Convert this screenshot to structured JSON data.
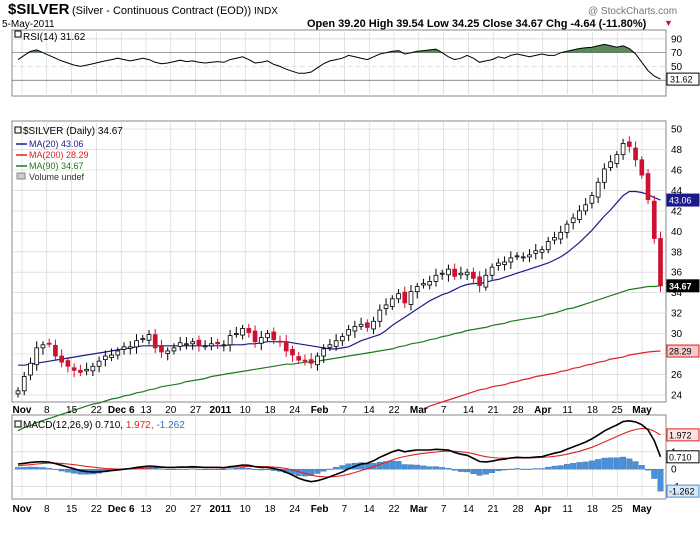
{
  "header": {
    "symbol": "$SILVER",
    "description": "(Silver - Continuous Contract (EOD))",
    "exchange": "INDX",
    "date": "5-May-2011",
    "ohlc_text": "Open 39.20  High 39.54  Low 34.25  Close 34.67  Chg -4.64 (-11.80%)",
    "chg_arrow": "▼",
    "watermark": "@ StockCharts.com"
  },
  "colors": {
    "up": "#ffffff",
    "down": "#cc1133",
    "candle_outline": "#000000",
    "ma20": "#1a1a8c",
    "ma200": "#e02020",
    "ma90": "#1e7a1e",
    "rsi_fill": "#5a8a5a",
    "hist": "#4a90d9",
    "macd_line": "#000000",
    "signal_line": "#e02020",
    "grid": "#d0d0d0",
    "axis_badge": "#000000"
  },
  "x_axis_labels": [
    "Nov",
    "8",
    "15",
    "22",
    "Dec 6",
    "13",
    "20",
    "27",
    "2011",
    "10",
    "18",
    "24",
    "Feb",
    "7",
    "14",
    "22",
    "Mar",
    "7",
    "14",
    "21",
    "28",
    "Apr",
    "11",
    "18",
    "25",
    "May"
  ],
  "rsi": {
    "label": "RSI(14) 31.62",
    "yticks": [
      "90",
      "70",
      "50",
      "30"
    ],
    "current": "31.62"
  },
  "price": {
    "legend_title": "$SILVER (Daily) 34.67",
    "legend": [
      "MA(20) 43.06",
      "MA(200) 28.29",
      "MA(90) 34.67",
      "Volume undef"
    ],
    "yticks": [
      "50",
      "48",
      "46",
      "44",
      "42",
      "40",
      "38",
      "36",
      "34",
      "32",
      "30",
      "28",
      "26",
      "24"
    ],
    "badges": [
      "43.06",
      "34.67",
      "28.29"
    ]
  },
  "macd": {
    "label_prefix": "MACD(12,26,9)",
    "label_macd": "0.710,",
    "label_signal": "1.972,",
    "label_hist": "-1.262",
    "yticks": [
      "2",
      "1",
      "0",
      "-1"
    ],
    "badges": [
      "1.972",
      "0.710",
      "-1.262"
    ]
  },
  "chart_data": {
    "type": "candlestick",
    "title": "$SILVER (Silver - Continuous Contract (EOD))",
    "period": "Nov 2010 – 5 May 2011",
    "ohlc_last": {
      "open": 39.2,
      "high": 39.54,
      "low": 34.25,
      "close": 34.67,
      "change": -4.64,
      "change_pct": -11.8
    },
    "price_ylim": [
      23.5,
      50.5
    ],
    "close_series": [
      24.4,
      25.8,
      27.1,
      28.6,
      28.9,
      29.0,
      27.8,
      27.2,
      26.8,
      26.4,
      26.2,
      26.5,
      26.8,
      27.3,
      27.8,
      27.9,
      28.3,
      28.7,
      28.7,
      29.3,
      29.5,
      29.9,
      28.6,
      28.2,
      28.3,
      28.6,
      29.1,
      29.0,
      29.2,
      28.9,
      28.8,
      29.0,
      29.0,
      28.9,
      29.8,
      30.0,
      30.5,
      30.1,
      29.2,
      29.6,
      30.0,
      29.4,
      29.2,
      28.3,
      27.9,
      27.4,
      27.3,
      27.1,
      27.8,
      28.5,
      28.9,
      29.3,
      29.7,
      30.4,
      30.7,
      30.9,
      30.6,
      31.2,
      32.3,
      32.8,
      33.4,
      33.9,
      33.0,
      34.1,
      34.6,
      34.9,
      35.1,
      35.7,
      35.9,
      36.3,
      35.6,
      35.9,
      36.0,
      35.4,
      34.7,
      35.7,
      36.5,
      36.9,
      37.0,
      37.4,
      37.6,
      37.5,
      37.7,
      38.1,
      38.2,
      39.0,
      39.4,
      39.9,
      40.7,
      41.3,
      42.0,
      42.6,
      43.5,
      44.8,
      46.1,
      46.8,
      47.5,
      48.6,
      48.3,
      47.0,
      45.5,
      43.1,
      39.3,
      34.67
    ],
    "series": [
      {
        "name": "MA(20)",
        "last": 43.06,
        "values": [
          26.9,
          26.9,
          27.0,
          27.1,
          27.2,
          27.3,
          27.4,
          27.5,
          27.6,
          27.7,
          27.8,
          27.9,
          28.0,
          28.1,
          28.2,
          28.3,
          28.4,
          28.5,
          28.6,
          28.7,
          28.8,
          28.8,
          28.8,
          28.8,
          28.8,
          28.8,
          28.8,
          28.8,
          28.8,
          28.8,
          28.8,
          28.8,
          28.8,
          28.8,
          28.9,
          28.9,
          28.9,
          29.0,
          29.0,
          29.1,
          29.2,
          29.2,
          29.2,
          29.2,
          29.1,
          29.0,
          28.9,
          28.8,
          28.7,
          28.6,
          28.5,
          28.5,
          28.6,
          28.7,
          29.0,
          29.3,
          29.5,
          29.7,
          29.9,
          30.3,
          30.8,
          31.2,
          31.6,
          32.0,
          32.4,
          32.8,
          33.2,
          33.5,
          33.8,
          34.0,
          34.3,
          34.6,
          34.8,
          34.9,
          34.9,
          35.0,
          35.2,
          35.3,
          35.5,
          35.7,
          35.9,
          36.1,
          36.3,
          36.5,
          36.7,
          36.9,
          37.2,
          37.5,
          37.9,
          38.4,
          38.9,
          39.5,
          40.1,
          40.8,
          41.5,
          42.1,
          42.8,
          43.5,
          43.9,
          43.9,
          43.8,
          43.6,
          43.3,
          43.06
        ]
      },
      {
        "name": "MA(90)",
        "last": 34.67,
        "values": [
          20.5,
          20.8,
          21.0,
          21.3,
          21.5,
          21.7,
          21.9,
          22.1,
          22.3,
          22.5,
          22.7,
          22.9,
          23.1,
          23.2,
          23.4,
          23.6,
          23.7,
          23.9,
          24.0,
          24.2,
          24.3,
          24.5,
          24.6,
          24.8,
          24.9,
          25.0,
          25.1,
          25.3,
          25.4,
          25.5,
          25.6,
          25.8,
          25.9,
          26.0,
          26.1,
          26.2,
          26.3,
          26.4,
          26.5,
          26.6,
          26.7,
          26.8,
          26.9,
          27.0,
          27.0,
          27.1,
          27.2,
          27.2,
          27.3,
          27.4,
          27.5,
          27.6,
          27.7,
          27.8,
          27.9,
          28.0,
          28.1,
          28.2,
          28.3,
          28.4,
          28.5,
          28.7,
          28.8,
          29.0,
          29.1,
          29.2,
          29.4,
          29.5,
          29.7,
          29.8,
          30.0,
          30.1,
          30.3,
          30.4,
          30.5,
          30.6,
          30.8,
          30.9,
          31.0,
          31.2,
          31.3,
          31.4,
          31.5,
          31.6,
          31.7,
          31.9,
          32.0,
          32.2,
          32.4,
          32.5,
          32.7,
          32.9,
          33.1,
          33.3,
          33.5,
          33.7,
          33.9,
          34.1,
          34.3,
          34.4,
          34.5,
          34.6,
          34.6,
          34.67
        ]
      },
      {
        "name": "MA(200)",
        "last": 28.29,
        "values": [
          null,
          null,
          null,
          null,
          null,
          null,
          null,
          null,
          null,
          null,
          null,
          null,
          null,
          null,
          null,
          null,
          null,
          null,
          null,
          null,
          null,
          null,
          null,
          null,
          null,
          null,
          null,
          null,
          null,
          null,
          null,
          null,
          null,
          null,
          null,
          null,
          null,
          null,
          null,
          null,
          null,
          null,
          null,
          null,
          null,
          null,
          null,
          null,
          null,
          null,
          null,
          null,
          null,
          null,
          null,
          null,
          null,
          null,
          null,
          null,
          null,
          null,
          null,
          null,
          null,
          22.6,
          22.9,
          23.1,
          23.3,
          23.5,
          23.7,
          23.9,
          24.1,
          24.3,
          24.5,
          24.6,
          24.8,
          24.9,
          25.0,
          25.2,
          25.3,
          25.5,
          25.6,
          25.8,
          25.9,
          26.0,
          26.1,
          26.3,
          26.4,
          26.6,
          26.7,
          26.9,
          27.0,
          27.2,
          27.3,
          27.5,
          27.6,
          27.7,
          27.9,
          28.0,
          28.1,
          28.2,
          28.25,
          28.29
        ]
      }
    ],
    "rsi_series": [
      60,
      66,
      72,
      74,
      70,
      66,
      62,
      58,
      55,
      52,
      50,
      52,
      54,
      56,
      58,
      60,
      62,
      60,
      58,
      60,
      62,
      60,
      56,
      54,
      55,
      57,
      59,
      57,
      58,
      56,
      55,
      56,
      57,
      56,
      60,
      62,
      64,
      60,
      55,
      56,
      58,
      53,
      50,
      46,
      43,
      40,
      40,
      42,
      48,
      54,
      58,
      60,
      62,
      66,
      64,
      62,
      60,
      64,
      68,
      70,
      72,
      73,
      68,
      70,
      72,
      73,
      74,
      75,
      70,
      64,
      60,
      62,
      66,
      62,
      56,
      58,
      60,
      64,
      62,
      66,
      68,
      66,
      64,
      66,
      68,
      66,
      66,
      70,
      72,
      74,
      76,
      77,
      78,
      80,
      82,
      80,
      78,
      80,
      76,
      68,
      56,
      44,
      36,
      31.62
    ],
    "macd_series": [
      0.3,
      0.34,
      0.39,
      0.42,
      0.43,
      0.4,
      0.32,
      0.22,
      0.12,
      0.02,
      -0.08,
      -0.14,
      -0.16,
      -0.15,
      -0.12,
      -0.08,
      -0.04,
      0.0,
      0.04,
      0.1,
      0.14,
      0.18,
      0.16,
      0.12,
      0.1,
      0.1,
      0.12,
      0.12,
      0.14,
      0.12,
      0.1,
      0.1,
      0.1,
      0.08,
      0.14,
      0.18,
      0.24,
      0.22,
      0.14,
      0.1,
      0.1,
      0.04,
      -0.04,
      -0.18,
      -0.34,
      -0.52,
      -0.64,
      -0.72,
      -0.66,
      -0.56,
      -0.44,
      -0.3,
      -0.16,
      0.02,
      0.16,
      0.3,
      0.34,
      0.48,
      0.68,
      0.84,
      1.0,
      1.1,
      1.0,
      1.06,
      1.1,
      1.1,
      1.1,
      1.14,
      1.12,
      1.1,
      0.96,
      0.86,
      0.8,
      0.62,
      0.44,
      0.42,
      0.46,
      0.54,
      0.58,
      0.64,
      0.68,
      0.66,
      0.66,
      0.7,
      0.72,
      0.82,
      0.92,
      1.0,
      1.14,
      1.28,
      1.42,
      1.56,
      1.74,
      1.96,
      2.2,
      2.38,
      2.54,
      2.74,
      2.78,
      2.72,
      2.56,
      2.26,
      1.64,
      0.71
    ],
    "signal_series": [
      0.2,
      0.23,
      0.26,
      0.3,
      0.33,
      0.35,
      0.35,
      0.33,
      0.3,
      0.26,
      0.21,
      0.16,
      0.12,
      0.08,
      0.04,
      0.02,
      0.01,
      0.0,
      0.01,
      0.03,
      0.05,
      0.07,
      0.09,
      0.1,
      0.1,
      0.1,
      0.11,
      0.11,
      0.11,
      0.11,
      0.11,
      0.11,
      0.11,
      0.11,
      0.11,
      0.12,
      0.14,
      0.16,
      0.16,
      0.15,
      0.14,
      0.12,
      0.09,
      0.04,
      -0.04,
      -0.14,
      -0.24,
      -0.34,
      -0.41,
      -0.44,
      -0.45,
      -0.42,
      -0.37,
      -0.29,
      -0.19,
      -0.08,
      0.03,
      0.14,
      0.27,
      0.4,
      0.53,
      0.65,
      0.73,
      0.8,
      0.86,
      0.91,
      0.95,
      0.99,
      1.02,
      1.04,
      1.03,
      1.0,
      0.96,
      0.89,
      0.8,
      0.72,
      0.67,
      0.64,
      0.63,
      0.63,
      0.64,
      0.65,
      0.65,
      0.66,
      0.68,
      0.7,
      0.74,
      0.79,
      0.86,
      0.94,
      1.03,
      1.14,
      1.26,
      1.4,
      1.56,
      1.72,
      1.88,
      2.04,
      2.18,
      2.28,
      2.34,
      2.32,
      2.18,
      1.972
    ],
    "macd_ylim": [
      -1.6,
      3.0
    ],
    "rsi_ylim": [
      10,
      100
    ]
  }
}
